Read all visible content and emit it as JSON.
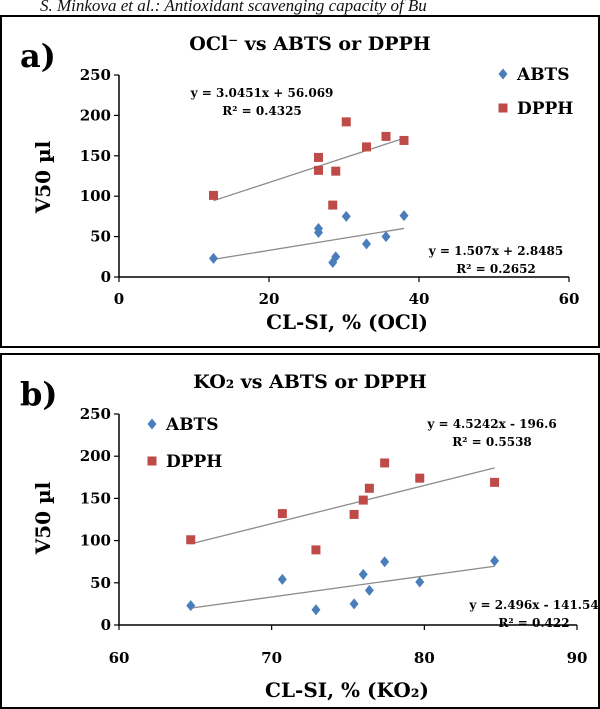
{
  "header": {
    "running_title": "S. Minkova et al.: Antioxidant scavenging capacity of Bu"
  },
  "colors": {
    "abts": "#4a7ebb",
    "dpph": "#be4b48",
    "trend": "#8c8c8c",
    "border": "#000000"
  },
  "chart_data": [
    {
      "type": "scatter",
      "panel_label": "a)",
      "title": "OCl⁻ vs ABTS or DPPH",
      "xlabel": "CL-SI, % (OCl)",
      "ylabel": "V50 µl",
      "xlim": [
        0,
        60
      ],
      "ylim": [
        0,
        250
      ],
      "xticks": [
        0,
        20,
        40,
        60
      ],
      "yticks": [
        0,
        50,
        100,
        150,
        200,
        250
      ],
      "grid": false,
      "legend_position": "top-right",
      "series": [
        {
          "name": "ABTS",
          "marker": "diamond",
          "color": "#4a7ebb",
          "points": [
            [
              12.6,
              23
            ],
            [
              26.6,
              60
            ],
            [
              26.6,
              55
            ],
            [
              28.5,
              18
            ],
            [
              28.9,
              25
            ],
            [
              30.3,
              75
            ],
            [
              33.0,
              41
            ],
            [
              35.6,
              50
            ],
            [
              38.0,
              76
            ]
          ],
          "trendline": {
            "slope": 1.507,
            "intercept": 2.8485,
            "x_range": [
              12.6,
              38.0
            ],
            "equation": "y = 1.507x + 2.8485",
            "r2": "R² = 0.2652"
          }
        },
        {
          "name": "DPPH",
          "marker": "square",
          "color": "#be4b48",
          "points": [
            [
              12.6,
              101
            ],
            [
              26.6,
              148
            ],
            [
              26.6,
              132
            ],
            [
              28.5,
              89
            ],
            [
              28.9,
              131
            ],
            [
              30.3,
              192
            ],
            [
              33.0,
              161
            ],
            [
              35.6,
              174
            ],
            [
              38.0,
              169
            ]
          ],
          "trendline": {
            "slope": 3.0451,
            "intercept": 56.069,
            "x_range": [
              12.6,
              38.0
            ],
            "equation": "y = 3.0451x + 56.069",
            "r2": "R² = 0.4325"
          }
        }
      ]
    },
    {
      "type": "scatter",
      "panel_label": "b)",
      "title": "KO₂ vs ABTS or DPPH",
      "xlabel": "CL-SI, % (KO₂)",
      "ylabel": "V50 µl",
      "xlim": [
        60,
        90
      ],
      "ylim": [
        0,
        250
      ],
      "xticks": [
        60,
        70,
        80,
        90
      ],
      "yticks": [
        0,
        50,
        100,
        150,
        200,
        250
      ],
      "grid": false,
      "legend_position": "top-left",
      "series": [
        {
          "name": "ABTS",
          "marker": "diamond",
          "color": "#4a7ebb",
          "points": [
            [
              64.7,
              23
            ],
            [
              70.7,
              54
            ],
            [
              72.9,
              18
            ],
            [
              75.4,
              25
            ],
            [
              76.0,
              60
            ],
            [
              76.4,
              41
            ],
            [
              77.4,
              75
            ],
            [
              79.7,
              51
            ],
            [
              84.6,
              76
            ]
          ],
          "trendline": {
            "slope": 2.496,
            "intercept": -141.54,
            "x_range": [
              64.7,
              84.6
            ],
            "equation": "y = 2.496x - 141.54",
            "r2": "R² = 0.422"
          }
        },
        {
          "name": "DPPH",
          "marker": "square",
          "color": "#be4b48",
          "points": [
            [
              64.7,
              101
            ],
            [
              70.7,
              132
            ],
            [
              72.9,
              89
            ],
            [
              75.4,
              131
            ],
            [
              76.0,
              148
            ],
            [
              76.4,
              162
            ],
            [
              77.4,
              192
            ],
            [
              79.7,
              174
            ],
            [
              84.6,
              169
            ]
          ],
          "trendline": {
            "slope": 4.5242,
            "intercept": -196.6,
            "x_range": [
              64.7,
              84.6
            ],
            "equation": "y = 4.5242x - 196.6",
            "r2": "R² = 0.5538"
          }
        }
      ]
    }
  ]
}
